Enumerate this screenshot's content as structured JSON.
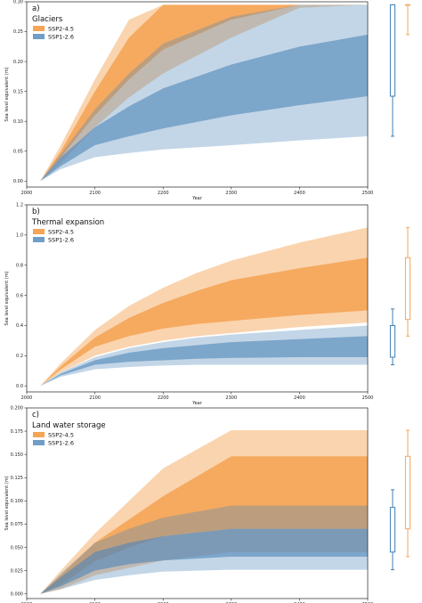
{
  "colors": {
    "ssp245": "#f28e2b",
    "ssp126": "#4e86b9",
    "box245": "#f5a55c",
    "box126": "#3f7fb5"
  },
  "chart_data": [
    {
      "type": "area",
      "panel_letter": "a)",
      "title": "Glaciers",
      "xlabel": "Year",
      "ylabel": "Sea level equivalent (m)",
      "xlim": [
        2000,
        2500
      ],
      "ylim": [
        -0.01,
        0.3
      ],
      "xticks": [
        2000,
        2100,
        2200,
        2300,
        2400,
        2500
      ],
      "yticks": [
        0.0,
        0.05,
        0.1,
        0.15,
        0.2,
        0.25,
        0.3
      ],
      "ytick_labels": [
        "0.00",
        "0.05",
        "0.10",
        "0.15",
        "0.20",
        "0.25",
        "0.30"
      ],
      "legend": [
        "SSP2-4.5",
        "SSP1-2.6"
      ],
      "legend_position": "top-left",
      "x": [
        2020,
        2050,
        2100,
        2150,
        2200,
        2300,
        2400,
        2500
      ],
      "series": [
        {
          "name": "SSP2-4.5",
          "outer_low": [
            0,
            0.03,
            0.09,
            0.14,
            0.18,
            0.24,
            0.29,
            0.295
          ],
          "outer_high": [
            0,
            0.06,
            0.17,
            0.27,
            0.295,
            0.295,
            0.295,
            0.295
          ],
          "inner_low": [
            0,
            0.04,
            0.11,
            0.17,
            0.22,
            0.27,
            0.295,
            0.295
          ],
          "inner_high": [
            0,
            0.05,
            0.15,
            0.24,
            0.295,
            0.295,
            0.295,
            0.295
          ]
        },
        {
          "name": "SSP1-2.6",
          "outer_low": [
            0,
            0.02,
            0.04,
            0.047,
            0.053,
            0.06,
            0.068,
            0.075
          ],
          "outer_high": [
            0,
            0.045,
            0.12,
            0.18,
            0.23,
            0.275,
            0.295,
            0.295
          ],
          "inner_low": [
            0,
            0.025,
            0.06,
            0.075,
            0.088,
            0.11,
            0.127,
            0.142
          ],
          "inner_high": [
            0,
            0.04,
            0.09,
            0.125,
            0.155,
            0.195,
            0.225,
            0.245
          ]
        }
      ],
      "boxes": [
        {
          "name": "SSP1-2.6",
          "whisker_low": 0.075,
          "q1": 0.142,
          "q3": 0.295,
          "whisker_high": 0.295
        },
        {
          "name": "SSP2-4.5",
          "whisker_low": 0.245,
          "q1": 0.295,
          "q3": 0.295,
          "whisker_high": 0.295
        }
      ]
    },
    {
      "type": "area",
      "panel_letter": "b)",
      "title": "Thermal expansion",
      "xlabel": "Year",
      "ylabel": "Sea level equivalent (m)",
      "xlim": [
        2000,
        2500
      ],
      "ylim": [
        -0.04,
        1.2
      ],
      "xticks": [
        2000,
        2100,
        2200,
        2300,
        2400,
        2500
      ],
      "yticks": [
        0.0,
        0.2,
        0.4,
        0.6,
        0.8,
        1.0,
        1.2
      ],
      "ytick_labels": [
        "0.0",
        "0.2",
        "0.4",
        "0.6",
        "0.8",
        "1.0",
        "1.2"
      ],
      "legend": [
        "SSP2-4.5",
        "SSP1-2.6"
      ],
      "legend_position": "top-left",
      "x": [
        2020,
        2050,
        2100,
        2150,
        2200,
        2250,
        2300,
        2400,
        2500
      ],
      "series": [
        {
          "name": "SSP2-4.5",
          "outer_low": [
            0,
            0.09,
            0.2,
            0.26,
            0.3,
            0.33,
            0.35,
            0.39,
            0.42
          ],
          "outer_high": [
            0,
            0.15,
            0.37,
            0.53,
            0.65,
            0.75,
            0.83,
            0.95,
            1.05
          ],
          "inner_low": [
            0,
            0.11,
            0.26,
            0.33,
            0.38,
            0.41,
            0.43,
            0.47,
            0.5
          ],
          "inner_high": [
            0,
            0.13,
            0.32,
            0.45,
            0.55,
            0.63,
            0.7,
            0.78,
            0.85
          ]
        },
        {
          "name": "SSP1-2.6",
          "outer_low": [
            0,
            0.06,
            0.11,
            0.125,
            0.135,
            0.14,
            0.14,
            0.14,
            0.14
          ],
          "outer_high": [
            0,
            0.09,
            0.19,
            0.25,
            0.29,
            0.32,
            0.34,
            0.37,
            0.4
          ],
          "inner_low": [
            0,
            0.07,
            0.14,
            0.16,
            0.17,
            0.18,
            0.185,
            0.19,
            0.19
          ],
          "inner_high": [
            0,
            0.08,
            0.17,
            0.22,
            0.25,
            0.27,
            0.29,
            0.31,
            0.33
          ]
        }
      ],
      "boxes": [
        {
          "name": "SSP1-2.6",
          "whisker_low": 0.14,
          "q1": 0.19,
          "q3": 0.4,
          "whisker_high": 0.51
        },
        {
          "name": "SSP2-4.5",
          "whisker_low": 0.33,
          "q1": 0.44,
          "q3": 0.85,
          "whisker_high": 1.05
        }
      ]
    },
    {
      "type": "area",
      "panel_letter": "c)",
      "title": "Land water storage",
      "xlabel": "Year",
      "ylabel": "Sea level equivalent (m)",
      "xlim": [
        2000,
        2500
      ],
      "ylim": [
        -0.005,
        0.2
      ],
      "xticks": [
        2000,
        2100,
        2200,
        2300,
        2400,
        2500
      ],
      "yticks": [
        0.0,
        0.025,
        0.05,
        0.075,
        0.1,
        0.125,
        0.15,
        0.175,
        0.2
      ],
      "ytick_labels": [
        "0.000",
        "0.025",
        "0.050",
        "0.075",
        "0.100",
        "0.125",
        "0.150",
        "0.175",
        "0.200"
      ],
      "legend": [
        "SSP2-4.5",
        "SSP1-2.6"
      ],
      "legend_position": "top-left",
      "x": [
        2020,
        2050,
        2100,
        2150,
        2200,
        2300,
        2400,
        2500
      ],
      "series": [
        {
          "name": "SSP2-4.5",
          "outer_low": [
            0,
            0.005,
            0.02,
            0.028,
            0.036,
            0.045,
            0.045,
            0.045
          ],
          "outer_high": [
            0,
            0.025,
            0.065,
            0.1,
            0.135,
            0.176,
            0.176,
            0.176
          ],
          "inner_low": [
            0,
            0.01,
            0.035,
            0.05,
            0.062,
            0.07,
            0.07,
            0.07
          ],
          "inner_high": [
            0,
            0.02,
            0.055,
            0.08,
            0.105,
            0.148,
            0.148,
            0.148
          ]
        },
        {
          "name": "SSP1-2.6",
          "outer_low": [
            0,
            0.005,
            0.015,
            0.02,
            0.024,
            0.026,
            0.026,
            0.026
          ],
          "outer_high": [
            0,
            0.022,
            0.055,
            0.07,
            0.082,
            0.095,
            0.095,
            0.095
          ],
          "inner_low": [
            0,
            0.008,
            0.025,
            0.032,
            0.036,
            0.04,
            0.04,
            0.04
          ],
          "inner_high": [
            0,
            0.018,
            0.045,
            0.055,
            0.062,
            0.07,
            0.07,
            0.07
          ]
        }
      ],
      "boxes": [
        {
          "name": "SSP1-2.6",
          "whisker_low": 0.026,
          "q1": 0.045,
          "q3": 0.093,
          "whisker_high": 0.112
        },
        {
          "name": "SSP2-4.5",
          "whisker_low": 0.04,
          "q1": 0.07,
          "q3": 0.148,
          "whisker_high": 0.176
        }
      ]
    }
  ]
}
